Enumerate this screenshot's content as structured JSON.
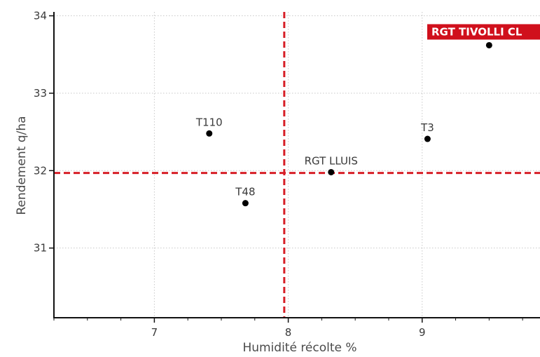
{
  "chart_data": {
    "type": "scatter",
    "title": "",
    "xlabel": "Humidité récolte %",
    "ylabel": "Rendement q/ha",
    "xlim": [
      6.25,
      9.88
    ],
    "ylim": [
      30.1,
      34.05
    ],
    "x_ticks": [
      7,
      8,
      9
    ],
    "x_minor_ticks": [
      6.25,
      6.5,
      6.75,
      7.25,
      7.5,
      7.75,
      8.25,
      8.5,
      8.75,
      9.25,
      9.5,
      9.75
    ],
    "y_ticks": [
      31,
      32,
      33,
      34
    ],
    "grid": true,
    "reference_lines": {
      "x": 7.97,
      "y": 31.97
    },
    "points": [
      {
        "label": "T110",
        "x": 7.41,
        "y": 32.48
      },
      {
        "label": "T48",
        "x": 7.68,
        "y": 31.58
      },
      {
        "label": "RGT LLUIS",
        "x": 8.32,
        "y": 31.98
      },
      {
        "label": "T3",
        "x": 9.04,
        "y": 32.41
      },
      {
        "label": "RGT TIVOLLI CL",
        "x": 9.5,
        "y": 33.62,
        "highlight": true
      }
    ]
  },
  "colors": {
    "reference_line": "#d71f27",
    "highlight_fill": "#d0101c",
    "point": "#000000"
  }
}
